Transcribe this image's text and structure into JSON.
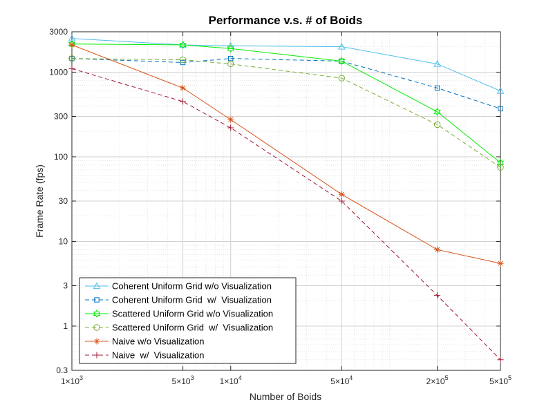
{
  "chart_data": {
    "type": "line",
    "title": "Performance v.s. # of Boids",
    "xlabel": "Number of Boids",
    "ylabel": "Frame Rate (fps)",
    "xscale": "log",
    "yscale": "log",
    "xlim": [
      1000,
      500000
    ],
    "ylim": [
      0.3,
      3000
    ],
    "grid": true,
    "legend_position": "bottom-left",
    "x_ticks": [
      {
        "value": 1000,
        "mantissa": "1",
        "exp": "3"
      },
      {
        "value": 5000,
        "mantissa": "5",
        "exp": "3"
      },
      {
        "value": 10000,
        "mantissa": "1",
        "exp": "4"
      },
      {
        "value": 50000,
        "mantissa": "5",
        "exp": "4"
      },
      {
        "value": 200000,
        "mantissa": "2",
        "exp": "5"
      },
      {
        "value": 500000,
        "mantissa": "5",
        "exp": "5"
      }
    ],
    "y_ticks": [
      {
        "value": 0.3,
        "label": "0.3"
      },
      {
        "value": 1,
        "label": "1"
      },
      {
        "value": 3,
        "label": "3"
      },
      {
        "value": 10,
        "label": "10"
      },
      {
        "value": 30,
        "label": "30"
      },
      {
        "value": 100,
        "label": "100"
      },
      {
        "value": 300,
        "label": "300"
      },
      {
        "value": 1000,
        "label": "1000"
      },
      {
        "value": 3000,
        "label": "3000"
      }
    ],
    "x": [
      1000,
      5000,
      10000,
      50000,
      200000,
      500000
    ],
    "series": [
      {
        "name": "Coherent Uniform Grid w/o Visualization",
        "values": [
          2500,
          2100,
          2050,
          2000,
          1250,
          600
        ],
        "color": "#4DBEEE",
        "dash": "solid",
        "marker": "triangle"
      },
      {
        "name": "Coherent Uniform Grid  w/  Visualization",
        "values": [
          1450,
          1300,
          1450,
          1350,
          650,
          370
        ],
        "color": "#0072BD",
        "dash": "dashed",
        "marker": "square"
      },
      {
        "name": "Scattered Uniform Grid w/o Visualization",
        "values": [
          2150,
          2100,
          1900,
          1350,
          340,
          85
        ],
        "color": "#00EE00",
        "dash": "solid",
        "marker": "hexagram"
      },
      {
        "name": "Scattered Uniform Grid  w/  Visualization",
        "values": [
          1450,
          1400,
          1250,
          850,
          240,
          75
        ],
        "color": "#77AC30",
        "dash": "dashed",
        "marker": "circle"
      },
      {
        "name": "Naive w/o Visualization",
        "values": [
          2100,
          650,
          275,
          36,
          8,
          5.5
        ],
        "color": "#D95319",
        "dash": "solid",
        "marker": "asterisk"
      },
      {
        "name": "Naive  w/  Visualization",
        "values": [
          1100,
          450,
          220,
          30,
          2.3,
          0.4
        ],
        "color": "#A2142F",
        "dash": "dashed",
        "marker": "plus"
      }
    ]
  }
}
